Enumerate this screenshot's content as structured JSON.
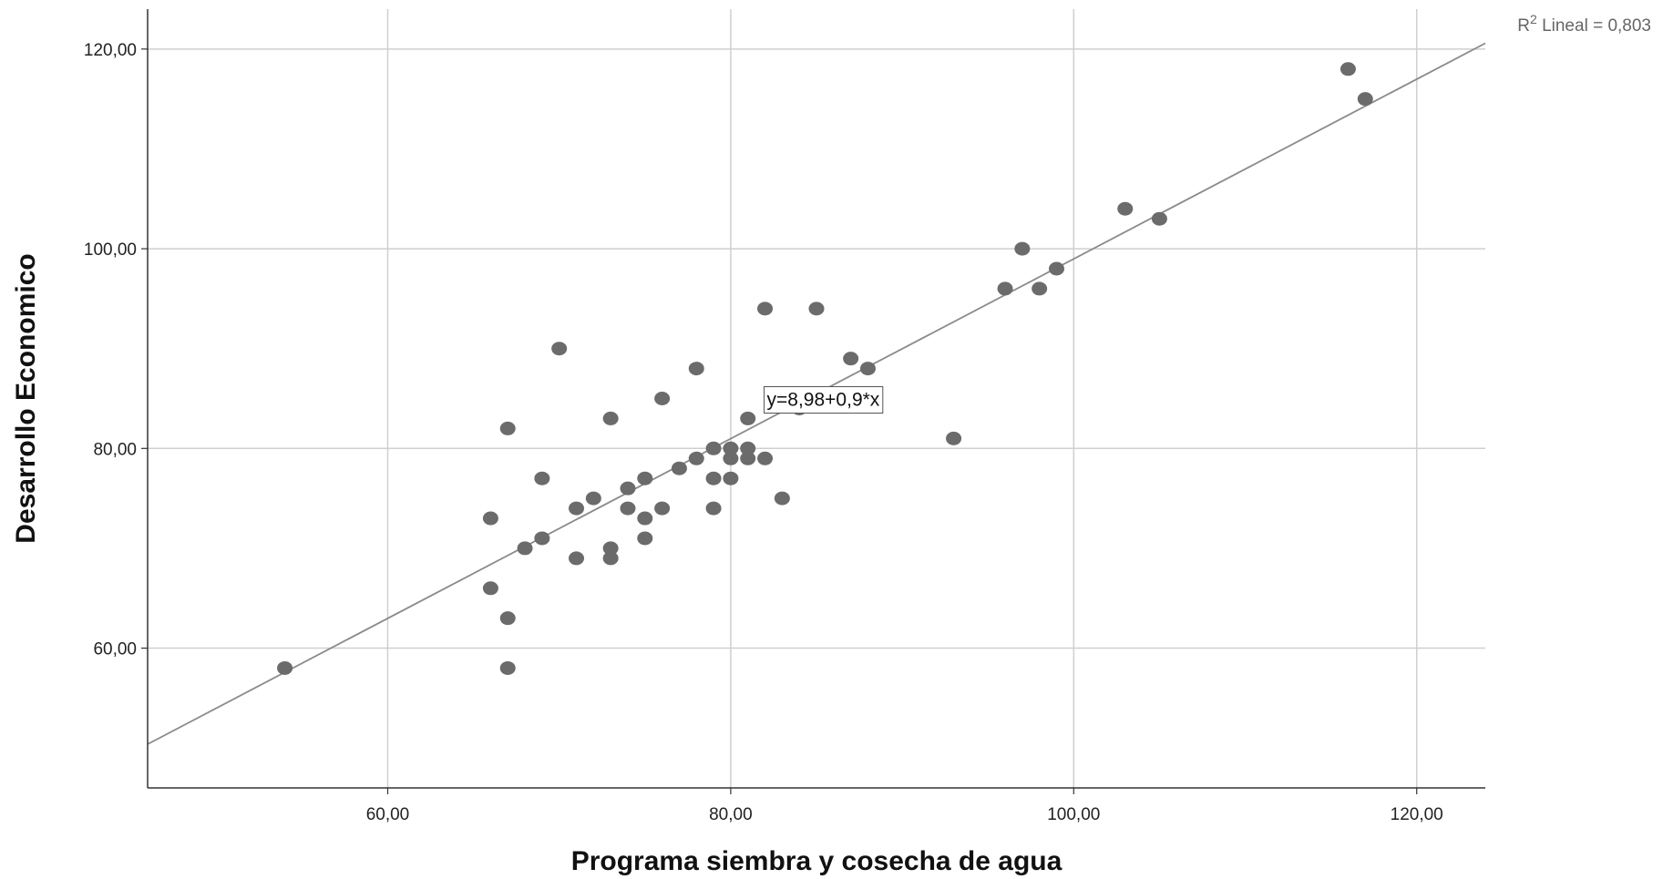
{
  "chart_data": {
    "type": "scatter",
    "xlabel": "Programa siembra y cosecha de agua",
    "ylabel": "Desarrollo Economico",
    "xlim": [
      46,
      124
    ],
    "ylim": [
      46,
      124
    ],
    "x_ticks": [
      60,
      80,
      100,
      120
    ],
    "y_ticks": [
      60,
      80,
      100,
      120
    ],
    "x_tick_labels": [
      "60,00",
      "80,00",
      "100,00",
      "120,00"
    ],
    "y_tick_labels": [
      "60,00",
      "80,00",
      "100,00",
      "120,00"
    ],
    "grid": true,
    "points": [
      [
        54,
        58
      ],
      [
        66,
        73
      ],
      [
        66,
        66
      ],
      [
        67,
        82
      ],
      [
        67,
        63
      ],
      [
        67,
        58
      ],
      [
        68,
        70
      ],
      [
        69,
        77
      ],
      [
        69,
        71
      ],
      [
        70,
        90
      ],
      [
        71,
        74
      ],
      [
        71,
        69
      ],
      [
        72,
        75
      ],
      [
        73,
        83
      ],
      [
        73,
        70
      ],
      [
        73,
        69
      ],
      [
        74,
        76
      ],
      [
        74,
        74
      ],
      [
        75,
        77
      ],
      [
        75,
        73
      ],
      [
        75,
        71
      ],
      [
        76,
        85
      ],
      [
        76,
        74
      ],
      [
        77,
        78
      ],
      [
        78,
        88
      ],
      [
        78,
        79
      ],
      [
        79,
        80
      ],
      [
        79,
        77
      ],
      [
        79,
        74
      ],
      [
        80,
        80
      ],
      [
        80,
        79
      ],
      [
        80,
        77
      ],
      [
        81,
        83
      ],
      [
        81,
        80
      ],
      [
        81,
        79
      ],
      [
        82,
        94
      ],
      [
        82,
        79
      ],
      [
        83,
        75
      ],
      [
        84,
        84
      ],
      [
        85,
        94
      ],
      [
        87,
        89
      ],
      [
        88,
        88
      ],
      [
        93,
        81
      ],
      [
        96,
        96
      ],
      [
        97,
        100
      ],
      [
        98,
        96
      ],
      [
        99,
        98
      ],
      [
        103,
        104
      ],
      [
        105,
        103
      ],
      [
        116,
        118
      ],
      [
        117,
        115
      ]
    ],
    "fit_line": {
      "intercept": 8.98,
      "slope": 0.9,
      "equation_label": "y=8,98+0,9*x",
      "equation_anchor": [
        82,
        85
      ]
    },
    "r2_label": {
      "prefix": "R",
      "superscript": "2",
      "text": " Lineal = 0,803"
    },
    "colors": {
      "points": "#6b6b6b",
      "fit_line": "#8a8a8a",
      "grid": "#cfcfcf",
      "axis": "#333333"
    }
  }
}
